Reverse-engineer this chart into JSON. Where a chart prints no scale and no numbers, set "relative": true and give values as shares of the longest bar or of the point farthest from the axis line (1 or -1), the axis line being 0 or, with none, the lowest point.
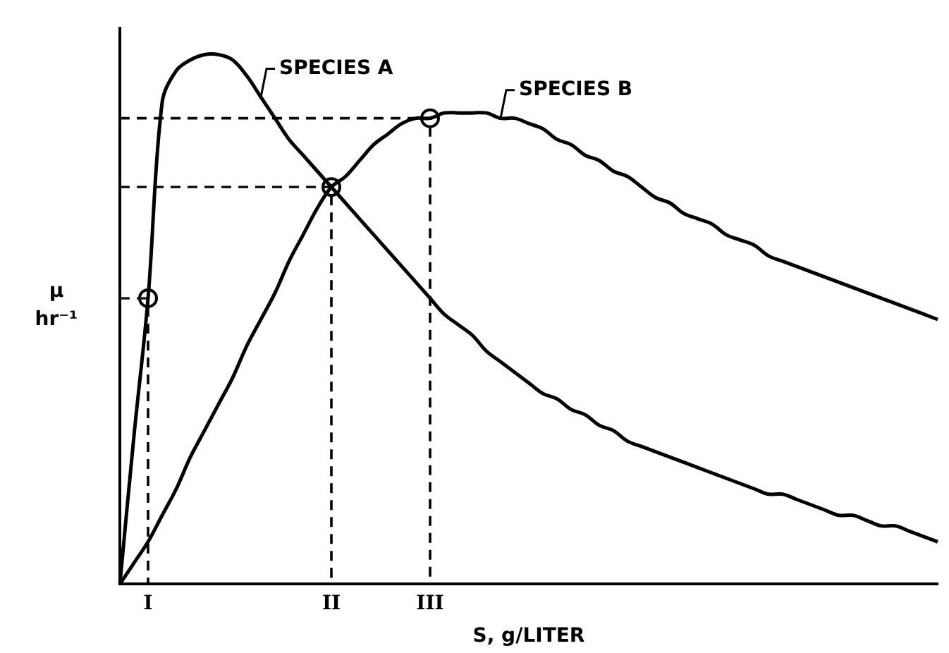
{
  "chart_data": {
    "type": "line",
    "relative": true,
    "xlabel": "S, g/LITER",
    "ylabel": "μ hr⁻¹",
    "categories": [
      null,
      null,
      "I",
      null,
      null,
      null,
      null,
      null,
      null,
      null,
      null,
      null,
      null,
      null,
      null,
      "II",
      null,
      null,
      null,
      null,
      null,
      null,
      "III",
      null,
      null,
      null,
      null,
      null,
      null,
      null,
      null,
      null,
      null,
      null,
      null,
      null,
      null,
      null,
      null,
      null,
      null,
      null,
      null,
      null,
      null,
      null,
      null,
      null,
      null,
      null,
      null,
      null,
      null,
      null,
      null,
      null,
      null,
      null,
      null
    ],
    "series": [
      {
        "name": "SPECIES A",
        "color": "#000000",
        "marker": "none",
        "values": [
          0,
          0.28,
          0.54,
          0.91,
          0.97,
          0.99,
          1.0,
          1.0,
          0.99,
          0.96,
          0.92,
          0.88,
          0.84,
          0.81,
          0.78,
          0.75,
          0.72,
          0.69,
          0.66,
          0.63,
          0.6,
          0.57,
          0.54,
          0.51,
          0.49,
          0.47,
          0.44,
          0.42,
          0.4,
          0.38,
          0.36,
          0.35,
          0.33,
          0.32,
          0.3,
          0.29,
          0.27,
          0.26,
          0.25,
          0.24,
          0.23,
          0.22,
          0.21,
          0.2,
          0.19,
          0.18,
          0.17,
          0.17,
          0.16,
          0.15,
          0.14,
          0.13,
          0.13,
          0.12,
          0.11,
          0.11,
          0.1,
          0.09,
          0.08
        ]
      },
      {
        "name": "SPECIES B",
        "color": "#000000",
        "marker": "none",
        "values": [
          0,
          0.04,
          0.08,
          0.13,
          0.18,
          0.24,
          0.29,
          0.34,
          0.39,
          0.45,
          0.5,
          0.55,
          0.61,
          0.66,
          0.71,
          0.75,
          0.77,
          0.8,
          0.83,
          0.85,
          0.87,
          0.88,
          0.88,
          0.89,
          0.89,
          0.89,
          0.89,
          0.88,
          0.88,
          0.87,
          0.86,
          0.84,
          0.83,
          0.81,
          0.8,
          0.78,
          0.77,
          0.75,
          0.73,
          0.72,
          0.7,
          0.69,
          0.68,
          0.66,
          0.65,
          0.64,
          0.62,
          0.61,
          0.6,
          0.59,
          0.58,
          0.57,
          0.56,
          0.55,
          0.54,
          0.53,
          0.52,
          0.51,
          0.5
        ]
      },
      {
        "color": "#1c1c1c",
        "marker": "none",
        "line_style": "dashed",
        "values": [
          0.54,
          0.54,
          0.54,
          null,
          null,
          null,
          null,
          null,
          null,
          null,
          null,
          null,
          null,
          null,
          null,
          null,
          null,
          null,
          null,
          null,
          null,
          null,
          null,
          null,
          null,
          null,
          null,
          null,
          null,
          null,
          null,
          null,
          null,
          null,
          null,
          null,
          null,
          null,
          null,
          null,
          null,
          null,
          null,
          null,
          null,
          null,
          null,
          null,
          null,
          null,
          null,
          null,
          null,
          null,
          null,
          null,
          null,
          null,
          null
        ]
      },
      {
        "color": "#141414",
        "marker": "none",
        "line_style": "dashed",
        "values": [
          0.75,
          0.75,
          0.75,
          0.75,
          0.75,
          0.75,
          0.75,
          0.75,
          0.75,
          0.75,
          0.75,
          0.75,
          0.75,
          0.75,
          0.75,
          0.75,
          null,
          null,
          null,
          null,
          null,
          null,
          null,
          null,
          null,
          null,
          null,
          null,
          null,
          null,
          null,
          null,
          null,
          null,
          null,
          null,
          null,
          null,
          null,
          null,
          null,
          null,
          null,
          null,
          null,
          null,
          null,
          null,
          null,
          null,
          null,
          null,
          null,
          null,
          null,
          null,
          null,
          null,
          null
        ]
      },
      {
        "color": "#0a0a0a",
        "marker": "none",
        "line_style": "dashed",
        "values": [
          0.88,
          0.88,
          0.88,
          0.88,
          0.88,
          0.88,
          0.88,
          0.88,
          0.88,
          0.88,
          0.88,
          0.88,
          0.88,
          0.88,
          0.88,
          0.88,
          0.88,
          0.88,
          0.88,
          0.88,
          0.88,
          0.88,
          0.88,
          null,
          null,
          null,
          null,
          null,
          null,
          null,
          null,
          null,
          null,
          null,
          null,
          null,
          null,
          null,
          null,
          null,
          null,
          null,
          null,
          null,
          null,
          null,
          null,
          null,
          null,
          null,
          null,
          null,
          null,
          null,
          null,
          null,
          null,
          null,
          null
        ]
      },
      {
        "type": "scatter",
        "color": "#000000",
        "marker": "circle",
        "line_style": "dashed",
        "values": [
          null,
          null,
          0.54,
          null,
          null,
          null,
          null,
          null,
          null,
          null,
          null,
          null,
          null,
          null,
          null,
          0.75,
          null,
          null,
          null,
          null,
          null,
          null,
          0.88,
          null,
          null,
          null,
          null,
          null,
          null,
          null,
          null,
          null,
          null,
          null,
          null,
          null,
          null,
          null,
          null,
          null,
          null,
          null,
          null,
          null,
          null,
          null,
          null,
          null,
          null,
          null,
          null,
          null,
          null,
          null,
          null,
          null,
          null,
          null,
          null
        ]
      }
    ],
    "legend": false,
    "grid": false
  }
}
